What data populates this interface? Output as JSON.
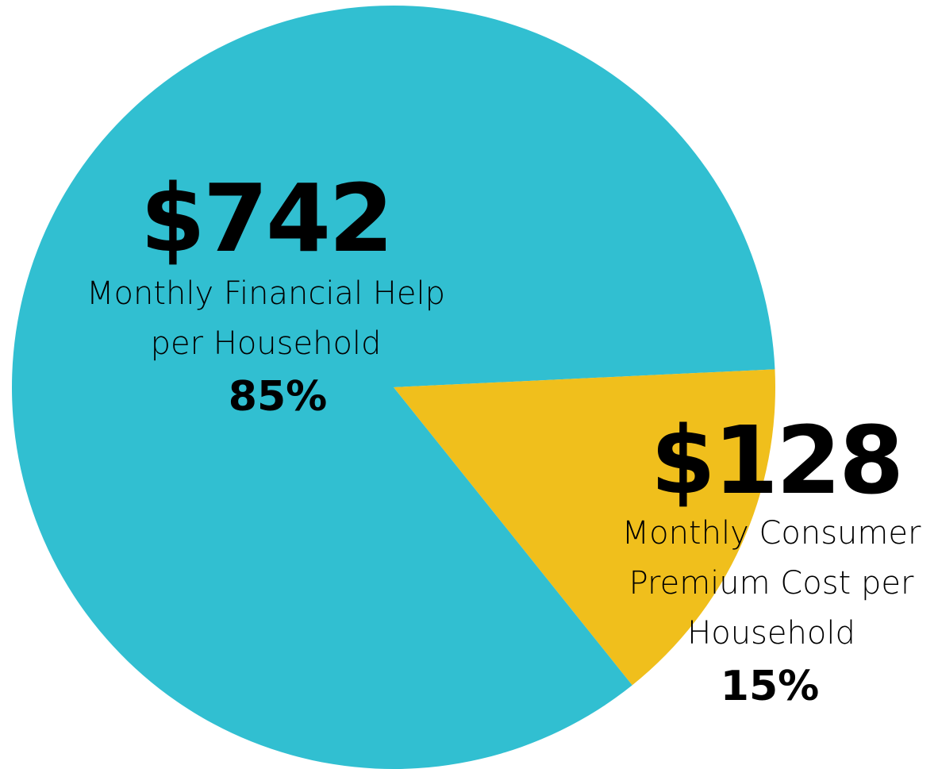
{
  "chart_data": {
    "type": "pie",
    "categories": [
      "Monthly Financial Help per Household",
      "Monthly Consumer Premium Cost per Household"
    ],
    "values": [
      85,
      15
    ],
    "value_labels": [
      "85%",
      "15%"
    ],
    "amount_labels": [
      "$742",
      "$128"
    ],
    "colors": [
      "#31bfd1",
      "#f0bf1c"
    ]
  }
}
